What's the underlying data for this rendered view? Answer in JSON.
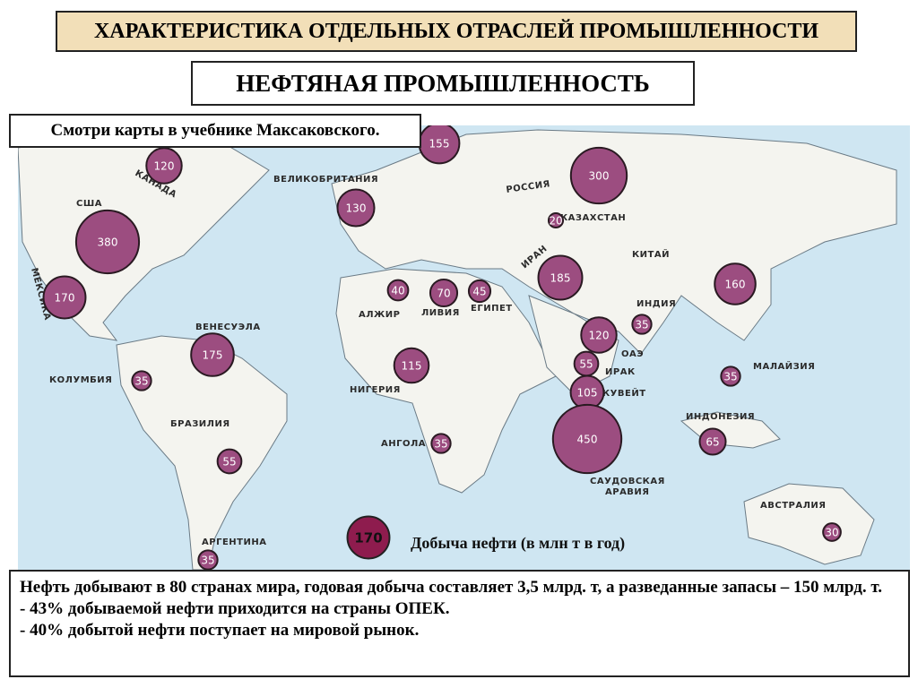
{
  "header": {
    "title": "ХАРАКТЕРИСТИКА ОТДЕЛЬНЫХ ОТРАСЛЕЙ ПРОМЫШЛЕННОСТИ",
    "subtitle": "НЕФТЯНАЯ ПРОМЫШЛЕННОСТЬ",
    "note": "Смотри карты в учебнике Максаковского."
  },
  "map": {
    "countries": [
      "КАНАДА",
      "США",
      "МЕКСИКА",
      "ВЕЛИКОБРИТАНИЯ",
      "РОССИЯ",
      "КАЗАХСТАН",
      "КИТАЙ",
      "ИРАН",
      "АЛЖИР",
      "ЛИВИЯ",
      "ЕГИПЕТ",
      "ИНДИЯ",
      "ОАЭ",
      "ИРАК",
      "КУВЕЙТ",
      "ВЕНЕСУЭЛА",
      "КОЛУМБИЯ",
      "НИГЕРИЯ",
      "МАЛАЙЗИЯ",
      "ИНДОНЕЗИЯ",
      "АНГОЛА",
      "БРАЗИЛИЯ",
      "САУДОВСКАЯ",
      "АРАВИЯ",
      "АВСТРАЛИЯ",
      "АРГЕНТИНА"
    ],
    "production": [
      120,
      155,
      300,
      130,
      380,
      20,
      185,
      160,
      170,
      40,
      70,
      45,
      35,
      120,
      175,
      55,
      115,
      35,
      35,
      105,
      450,
      35,
      65,
      55,
      30,
      35
    ],
    "legend": {
      "value": 170,
      "label": "Добыча нефти (в млн т в год)"
    }
  },
  "info": {
    "lines": [
      "Нефть добывают в 80 странах мира, годовая добыча составляет 3,5 млрд. т, а разведанные запасы – 150 млрд. т.",
      "- 43% добываемой нефти приходится на страны ОПЕК.",
      "- 40% добытой нефти поступает на мировой рынок."
    ]
  }
}
